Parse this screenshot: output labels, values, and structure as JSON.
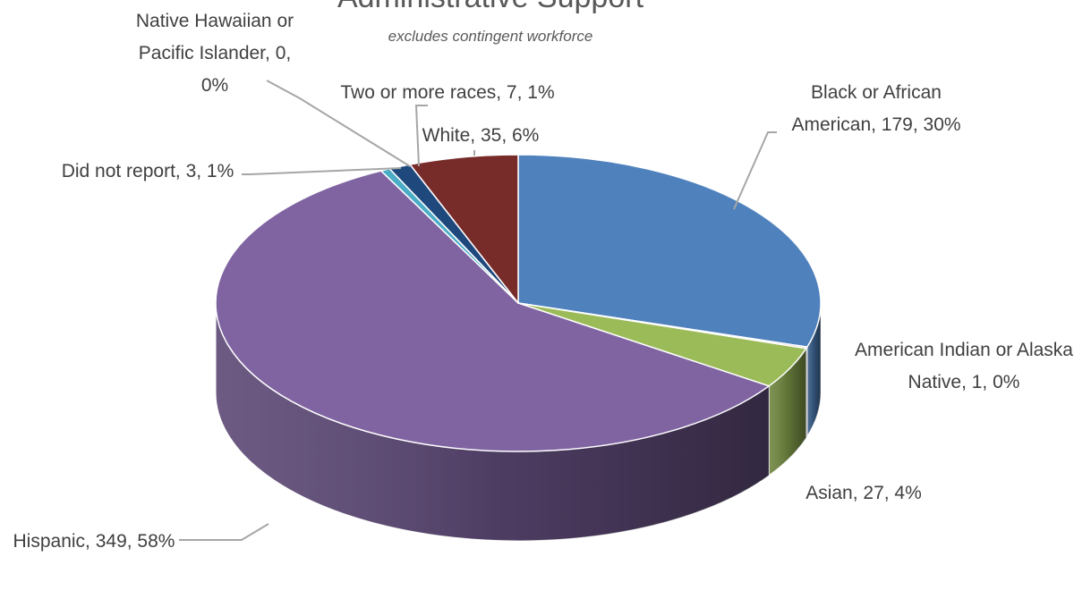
{
  "chart_data": {
    "type": "pie",
    "title": "Administrative Support",
    "subtitle": "excludes contingent workforce",
    "slices": [
      {
        "name": "Black or African American",
        "value": 179,
        "percent": "30%",
        "color": "#4f81bd",
        "label_lines": [
          "Black or African",
          "American, 179, 30%"
        ]
      },
      {
        "name": "American Indian or Alaska Native",
        "value": 1,
        "percent": "0%",
        "color": "#c0504d",
        "label_lines": [
          "American Indian or Alaska",
          "Native, 1, 0%"
        ]
      },
      {
        "name": "Asian",
        "value": 27,
        "percent": "4%",
        "color": "#9bbb59",
        "label_lines": [
          "Asian, 27, 4%"
        ]
      },
      {
        "name": "Hispanic",
        "value": 349,
        "percent": "58%",
        "color": "#8064a2",
        "label_lines": [
          "Hispanic, 349, 58%"
        ]
      },
      {
        "name": "Did not report",
        "value": 3,
        "percent": "1%",
        "color": "#4bacc6",
        "label_lines": [
          "Did not report, 3, 1%"
        ]
      },
      {
        "name": "Native Hawaiian or Pacific Islander",
        "value": 0,
        "percent": "0%",
        "color": "#f79646",
        "label_lines": [
          "Native Hawaiian or",
          "Pacific Islander, 0,",
          "0%"
        ]
      },
      {
        "name": "Two or more races",
        "value": 7,
        "percent": "1%",
        "color": "#1f497d",
        "label_lines": [
          "Two or more races, 7, 1%"
        ]
      },
      {
        "name": "White",
        "value": 35,
        "percent": "6%",
        "color": "#772c2a",
        "label_lines": [
          "White, 35, 6%"
        ]
      }
    ]
  }
}
